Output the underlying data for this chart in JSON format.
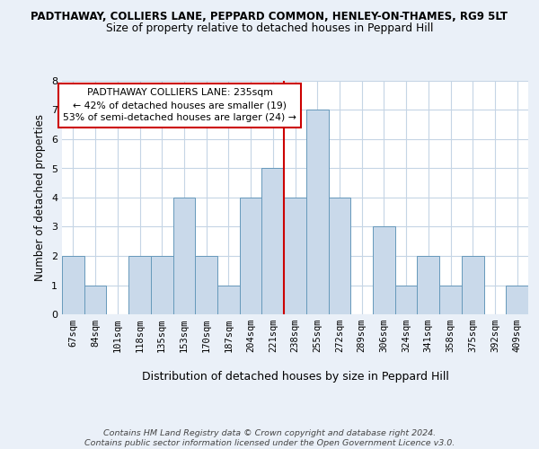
{
  "title1": "PADTHAWAY, COLLIERS LANE, PEPPARD COMMON, HENLEY-ON-THAMES, RG9 5LT",
  "title2": "Size of property relative to detached houses in Peppard Hill",
  "xlabel": "Distribution of detached houses by size in Peppard Hill",
  "ylabel": "Number of detached properties",
  "categories": [
    "67sqm",
    "84sqm",
    "101sqm",
    "118sqm",
    "135sqm",
    "153sqm",
    "170sqm",
    "187sqm",
    "204sqm",
    "221sqm",
    "238sqm",
    "255sqm",
    "272sqm",
    "289sqm",
    "306sqm",
    "324sqm",
    "341sqm",
    "358sqm",
    "375sqm",
    "392sqm",
    "409sqm"
  ],
  "values": [
    2,
    1,
    0,
    2,
    2,
    4,
    2,
    1,
    4,
    5,
    4,
    7,
    4,
    0,
    3,
    1,
    2,
    1,
    2,
    0,
    1
  ],
  "bar_color": "#c9d9ea",
  "bar_edge_color": "#6699bb",
  "vline_color": "#cc0000",
  "annotation_box_color": "#ffffff",
  "annotation_box_edge": "#cc0000",
  "marker_label_line1": "PADTHAWAY COLLIERS LANE: 235sqm",
  "marker_label_line2": "← 42% of detached houses are smaller (19)",
  "marker_label_line3": "53% of semi-detached houses are larger (24) →",
  "footer": "Contains HM Land Registry data © Crown copyright and database right 2024.\nContains public sector information licensed under the Open Government Licence v3.0.",
  "ylim": [
    0,
    8
  ],
  "yticks": [
    0,
    1,
    2,
    3,
    4,
    5,
    6,
    7,
    8
  ],
  "bg_color": "#eaf0f8",
  "plot_bg_color": "#ffffff",
  "grid_color": "#c5d5e5"
}
